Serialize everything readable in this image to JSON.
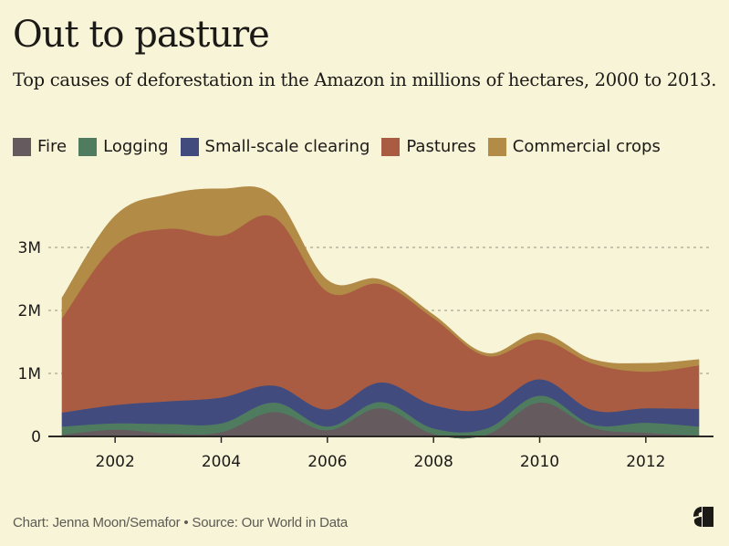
{
  "header": {
    "title": "Out to pasture",
    "subtitle": "Top causes of deforestation in the Amazon in millions of hectares, 2000 to 2013."
  },
  "legend": [
    {
      "label": "Fire",
      "color": "#655a5e"
    },
    {
      "label": "Logging",
      "color": "#4f7b5f"
    },
    {
      "label": "Small-scale clearing",
      "color": "#414b7e"
    },
    {
      "label": "Pastures",
      "color": "#a95c41"
    },
    {
      "label": "Commercial crops",
      "color": "#b28b47"
    }
  ],
  "footer": {
    "credit": "Chart: Jenna Moon/Semafor • Source: Our World in Data",
    "logo": "semafor-logo"
  },
  "chart_data": {
    "type": "area",
    "stacked": true,
    "title": "Out to pasture",
    "subtitle": "Top causes of deforestation in the Amazon in millions of hectares, 2000 to 2013.",
    "xlabel": "",
    "ylabel": "",
    "x": [
      2001,
      2002,
      2003,
      2004,
      2005,
      2006,
      2007,
      2008,
      2009,
      2010,
      2011,
      2012,
      2013
    ],
    "xticks": [
      2002,
      2004,
      2006,
      2008,
      2010,
      2012
    ],
    "xtick_labels": [
      "2002",
      "2004",
      "2006",
      "2008",
      "2010",
      "2012"
    ],
    "yticks": [
      0,
      1000000,
      2000000,
      3000000
    ],
    "ytick_labels": [
      "0",
      "1M",
      "2M",
      "3M"
    ],
    "ylim": [
      0,
      4000000
    ],
    "xlim": [
      2001,
      2013.3
    ],
    "grid": "horizontal-dotted",
    "legend_position": "top-left",
    "series": [
      {
        "name": "Fire",
        "color": "#655a5e",
        "values": [
          30000,
          110000,
          50000,
          70000,
          390000,
          100000,
          450000,
          40000,
          30000,
          540000,
          140000,
          60000,
          20000
        ]
      },
      {
        "name": "Logging",
        "color": "#4f7b5f",
        "values": [
          130000,
          100000,
          150000,
          140000,
          150000,
          60000,
          100000,
          90000,
          100000,
          110000,
          50000,
          160000,
          140000
        ]
      },
      {
        "name": "Small-scale clearing",
        "color": "#414b7e",
        "values": [
          220000,
          290000,
          360000,
          410000,
          270000,
          270000,
          310000,
          370000,
          310000,
          260000,
          230000,
          230000,
          280000
        ]
      },
      {
        "name": "Pastures",
        "color": "#a95c41",
        "values": [
          1500000,
          2530000,
          2740000,
          2570000,
          2670000,
          1870000,
          1560000,
          1380000,
          840000,
          630000,
          740000,
          580000,
          690000
        ]
      },
      {
        "name": "Commercial crops",
        "color": "#b28b47",
        "values": [
          320000,
          470000,
          540000,
          740000,
          330000,
          180000,
          70000,
          50000,
          40000,
          100000,
          60000,
          130000,
          90000
        ]
      }
    ]
  }
}
